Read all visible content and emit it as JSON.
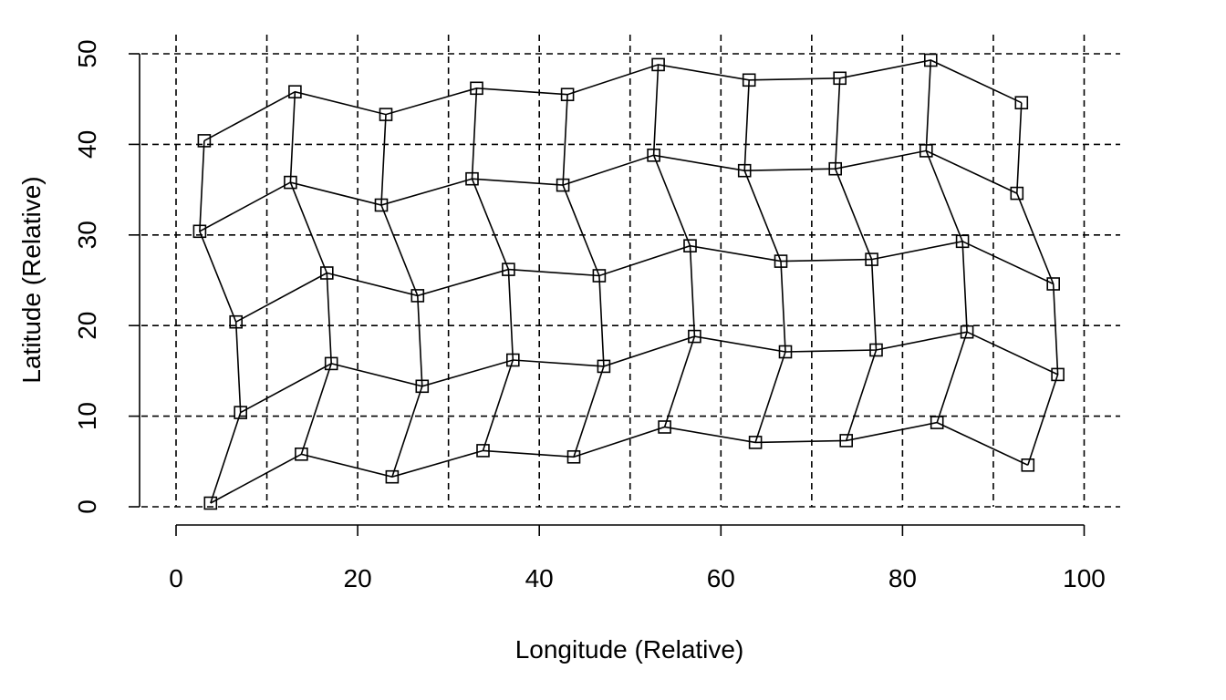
{
  "chart_data": {
    "type": "scatter",
    "xlabel": "Longitude (Relative)",
    "ylabel": "Latitude (Relative)",
    "xlim": [
      -4,
      104
    ],
    "ylim": [
      0,
      50
    ],
    "xticks": [
      0,
      20,
      40,
      60,
      80,
      100
    ],
    "yticks": [
      0,
      10,
      20,
      30,
      40,
      50
    ],
    "xgrid": [
      0,
      10,
      20,
      30,
      40,
      50,
      60,
      70,
      80,
      90,
      100
    ],
    "ygrid": [
      0,
      10,
      20,
      30,
      40,
      50
    ],
    "grid": true,
    "marker": "open-square",
    "connections": "mesh: consecutive points within each row and consecutive points within each column are joined",
    "rows": [
      {
        "x": [
          3.8,
          13.8,
          23.8,
          33.8,
          43.8,
          53.8,
          63.8,
          73.8,
          83.8,
          93.8
        ],
        "y": [
          0.4,
          5.8,
          3.3,
          6.2,
          5.5,
          8.8,
          7.1,
          7.3,
          9.3,
          4.6
        ]
      },
      {
        "x": [
          7.1,
          17.1,
          27.1,
          37.1,
          47.1,
          57.1,
          67.1,
          77.1,
          87.1,
          97.1
        ],
        "y": [
          10.4,
          15.8,
          13.3,
          16.2,
          15.5,
          18.8,
          17.1,
          17.3,
          19.3,
          14.6
        ]
      },
      {
        "x": [
          6.6,
          16.6,
          26.6,
          36.6,
          46.6,
          56.6,
          66.6,
          76.6,
          86.6,
          96.6
        ],
        "y": [
          20.4,
          25.8,
          23.3,
          26.2,
          25.5,
          28.8,
          27.1,
          27.3,
          29.3,
          24.6
        ]
      },
      {
        "x": [
          2.6,
          12.6,
          22.6,
          32.6,
          42.6,
          52.6,
          62.6,
          72.6,
          82.6,
          92.6
        ],
        "y": [
          30.4,
          35.8,
          33.3,
          36.2,
          35.5,
          38.8,
          37.1,
          37.3,
          39.3,
          34.6
        ]
      },
      {
        "x": [
          3.1,
          13.1,
          23.1,
          33.1,
          43.1,
          53.1,
          63.1,
          73.1,
          83.1,
          93.1
        ],
        "y": [
          40.4,
          45.8,
          43.3,
          46.2,
          45.5,
          48.8,
          47.1,
          47.3,
          49.3,
          44.6
        ]
      }
    ]
  }
}
